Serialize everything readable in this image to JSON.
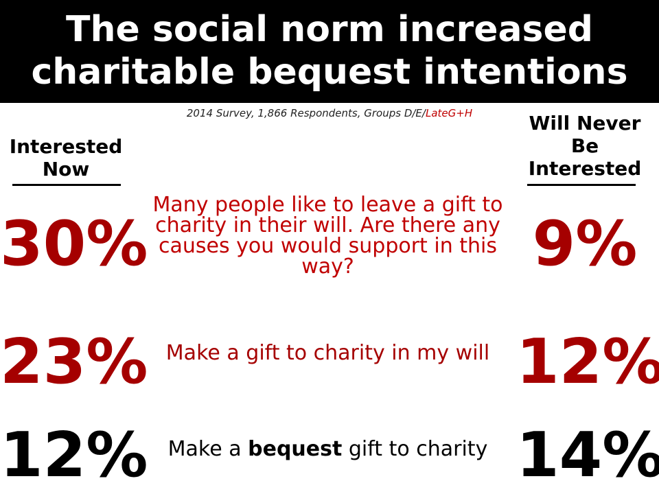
{
  "title": {
    "line1": "The social norm increased",
    "line2": "charitable bequest intentions"
  },
  "subtitle": {
    "prefix": "2014 Survey, 1,866 Respondents, Groups D/",
    "group_e": "E",
    "separator": "/",
    "group_late": "LateG+H"
  },
  "columns": {
    "left_header": [
      "Interested",
      "Now"
    ],
    "right_header": [
      "Will Never",
      "Be",
      "Interested"
    ]
  },
  "rows": [
    {
      "question": "Many people like to leave a gift to charity in their will.  Are there any causes you would support in this way?",
      "interested_now": "30%",
      "never_interested": "9%",
      "color": "#c00000"
    },
    {
      "question": "Make a gift to charity in my will",
      "interested_now": "23%",
      "never_interested": "12%",
      "color": "#a50000"
    },
    {
      "question_prefix": "Make a ",
      "question_bold": "bequest",
      "question_suffix": " gift to charity",
      "interested_now": "12%",
      "never_interested": "14%",
      "color": "#000000"
    }
  ],
  "colors": {
    "title_bg": "#000000",
    "title_text": "#ffffff",
    "accent_red": "#c00000",
    "dark_red": "#a50000"
  }
}
